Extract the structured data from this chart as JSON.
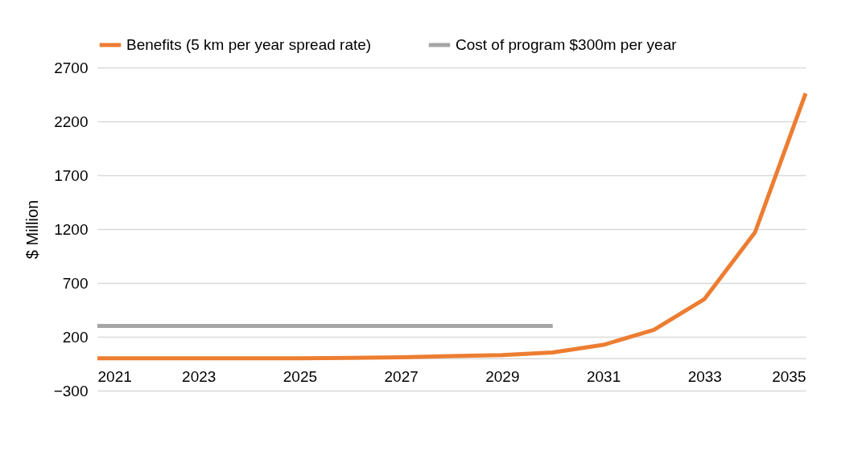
{
  "chart_data": {
    "type": "line",
    "ylabel": "$ Million",
    "x": [
      2021,
      2022,
      2023,
      2024,
      2025,
      2026,
      2027,
      2028,
      2029,
      2030,
      2031,
      2032,
      2033,
      2034,
      2035
    ],
    "series": [
      {
        "name": "Benefits (5 km per year spread rate)",
        "color": "#ed7d31",
        "values": [
          0,
          0,
          0,
          0,
          0,
          5,
          10,
          20,
          30,
          55,
          125,
          265,
          550,
          1170,
          2460
        ]
      },
      {
        "name": "Cost of program $300m per year",
        "color": "#a5a5a5",
        "x": [
          2021,
          2030
        ],
        "values": [
          300,
          300
        ]
      }
    ],
    "xlim": [
      2021,
      2035
    ],
    "xticks": [
      2021,
      2023,
      2025,
      2027,
      2029,
      2031,
      2033,
      2035
    ],
    "ylim": [
      -300,
      2700
    ],
    "yticks": [
      -300,
      200,
      700,
      1200,
      1700,
      2200,
      2700
    ],
    "grid": "y",
    "legend": "top",
    "marker": "none",
    "line_style": "solid"
  }
}
